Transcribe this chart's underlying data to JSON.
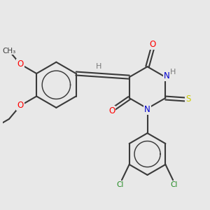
{
  "bg_color": "#e8e8e8",
  "bond_color": "#3a3a3a",
  "bond_width": 1.5,
  "atom_colors": {
    "O": "#ff0000",
    "N": "#0000cd",
    "S": "#cccc00",
    "Cl": "#228b22",
    "H": "#7a7a7a",
    "C": "#3a3a3a"
  },
  "scale": 1.0
}
